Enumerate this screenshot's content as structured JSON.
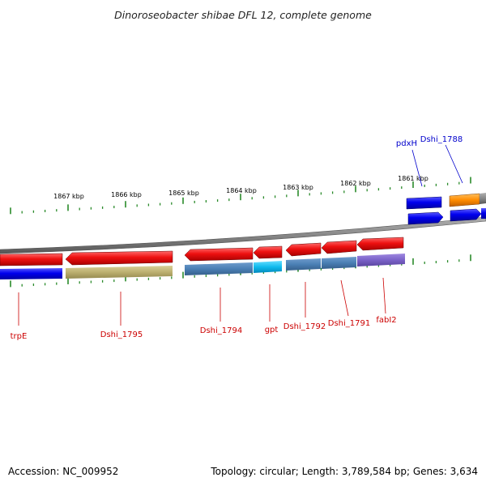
{
  "title": "Dinoroseobacter shibae DFL 12, complete genome",
  "footer": {
    "accession": "Accession: NC_009952",
    "summary": "Topology: circular; Length: 3,789,584 bp; Genes: 3,634"
  },
  "ruler": [
    "1867 kbp",
    "1866 kbp",
    "1865 kbp",
    "1864 kbp",
    "1863 kbp",
    "1862 kbp",
    "1861 kbp"
  ],
  "genes_bottom": [
    {
      "name": "trpE",
      "color": "#cc0000"
    },
    {
      "name": "Dshi_1795",
      "color": "#cc0000"
    },
    {
      "name": "Dshi_1794",
      "color": "#cc0000"
    },
    {
      "name": "gpt",
      "color": "#cc0000"
    },
    {
      "name": "Dshi_1792",
      "color": "#cc0000"
    },
    {
      "name": "Dshi_1791",
      "color": "#cc0000"
    },
    {
      "name": "fabI2",
      "color": "#cc0000"
    }
  ],
  "genes_top": [
    {
      "name": "pdxH",
      "color": "#0000cc"
    },
    {
      "name": "Dshi_1788",
      "color": "#0000cc"
    }
  ]
}
